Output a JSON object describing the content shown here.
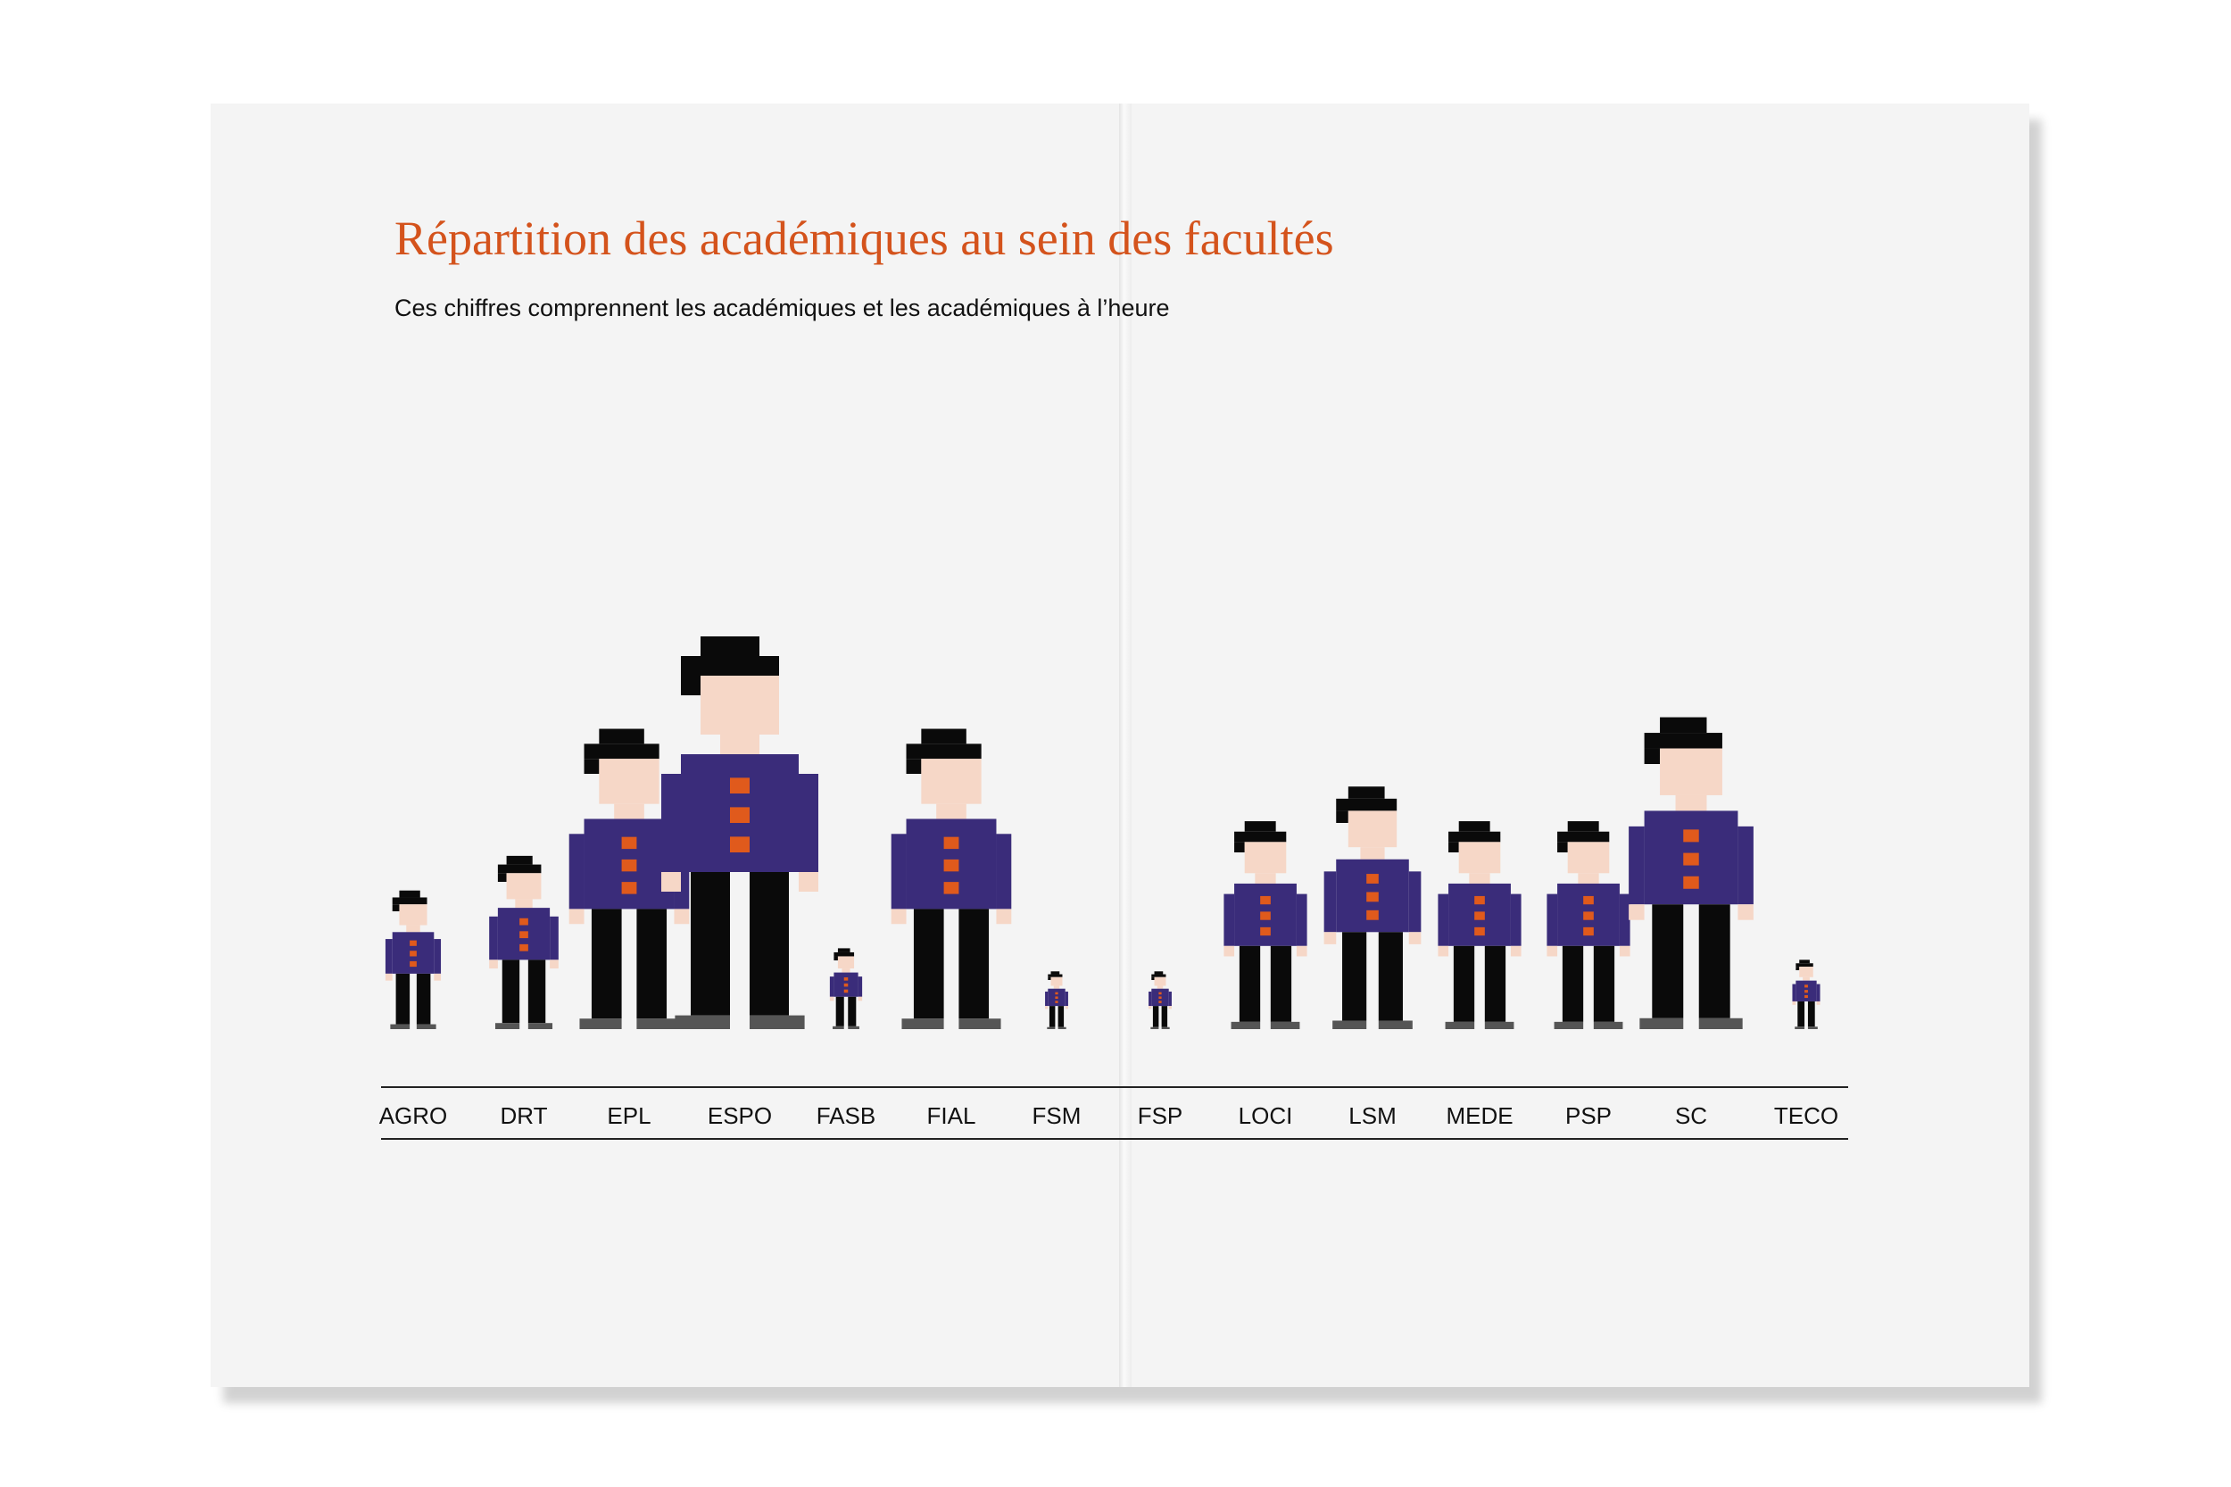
{
  "title": "Répartition des académiques au sein des facultés",
  "subtitle": "Ces chiffres comprennent les académiques et les académiques à l’heure",
  "colors": {
    "title": "#d4531c",
    "hair": "#0a0a0a",
    "skin": "#f6d7c7",
    "shirt": "#3a2c7a",
    "button": "#e05a1c",
    "trousers": "#0a0a0a",
    "shoes": "#555555"
  },
  "chart_data": {
    "type": "pictogram",
    "title": "Répartition des académiques au sein des facultés",
    "subtitle": "Ces chiffres comprennent les académiques et les académiques à l’heure",
    "categories": [
      "AGRO",
      "DRT",
      "EPL",
      "ESPO",
      "FASB",
      "FIAL",
      "FSM",
      "FSP",
      "LOCI",
      "LSM",
      "MEDE",
      "PSP",
      "SC",
      "TECO"
    ],
    "values": [
      12,
      15,
      26,
      34,
      7,
      26,
      5,
      5,
      18,
      21,
      18,
      18,
      27,
      6
    ],
    "value_note": "relative figure heights; no numeric values printed",
    "legend": "none",
    "grid": false
  }
}
